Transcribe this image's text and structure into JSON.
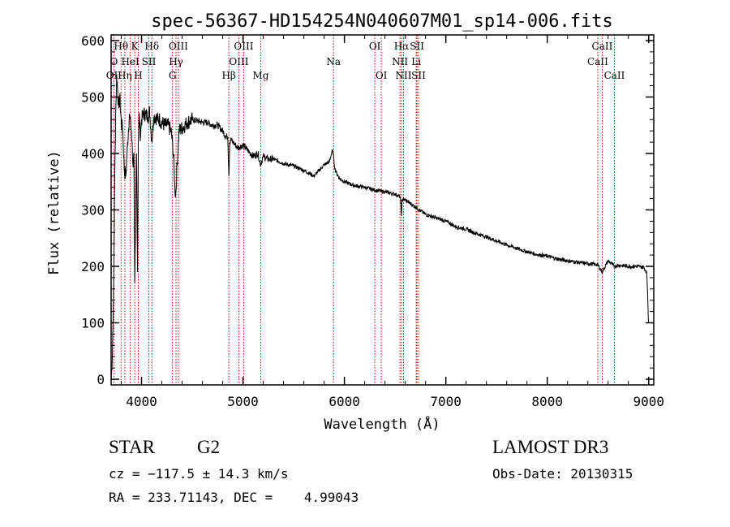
{
  "chart_data": {
    "type": "line",
    "title": "spec-56367-HD154254N040607M01_sp14-006.fits",
    "xlabel": "Wavelength (Å)",
    "ylabel": "Flux (relative)",
    "xlim": [
      3700,
      9050
    ],
    "ylim": [
      -10,
      610
    ],
    "xticks": [
      4000,
      5000,
      6000,
      7000,
      8000,
      9000
    ],
    "yticks": [
      0,
      100,
      200,
      300,
      400,
      500,
      600
    ],
    "grid": false,
    "series": [
      {
        "name": "spectrum",
        "x": [
          3700,
          3710,
          3725,
          3735,
          3745,
          3755,
          3765,
          3775,
          3785,
          3800,
          3815,
          3830,
          3845,
          3860,
          3880,
          3900,
          3915,
          3925,
          3933,
          3940,
          3950,
          3960,
          3968,
          3975,
          3990,
          4000,
          4020,
          4040,
          4060,
          4080,
          4102,
          4120,
          4140,
          4160,
          4180,
          4200,
          4230,
          4260,
          4290,
          4305,
          4320,
          4330,
          4340,
          4350,
          4370,
          4400,
          4450,
          4500,
          4550,
          4600,
          4650,
          4700,
          4750,
          4800,
          4830,
          4850,
          4861,
          4870,
          4880,
          4900,
          4950,
          5000,
          5050,
          5100,
          5150,
          5170,
          5183,
          5200,
          5250,
          5300,
          5400,
          5500,
          5600,
          5700,
          5800,
          5850,
          5880,
          5890,
          5900,
          5910,
          5950,
          6000,
          6100,
          6200,
          6300,
          6400,
          6500,
          6550,
          6560,
          6563,
          6566,
          6570,
          6600,
          6700,
          6800,
          6900,
          7000,
          7100,
          7200,
          7300,
          7400,
          7500,
          7600,
          7700,
          7800,
          7900,
          8000,
          8100,
          8200,
          8300,
          8400,
          8498,
          8542,
          8600,
          8662,
          8700,
          8800,
          8900,
          8950,
          8980,
          8990,
          8998
        ],
        "y": [
          0,
          30,
          160,
          350,
          470,
          540,
          510,
          480,
          500,
          455,
          440,
          370,
          360,
          410,
          470,
          440,
          380,
          400,
          170,
          250,
          400,
          190,
          420,
          470,
          430,
          460,
          470,
          470,
          465,
          475,
          420,
          465,
          465,
          460,
          460,
          455,
          450,
          450,
          440,
          420,
          380,
          330,
          335,
          380,
          440,
          445,
          455,
          460,
          458,
          455,
          455,
          450,
          450,
          440,
          430,
          430,
          360,
          420,
          425,
          420,
          410,
          415,
          405,
          395,
          400,
          380,
          385,
          395,
          390,
          390,
          382,
          378,
          370,
          360,
          380,
          385,
          405,
          400,
          380,
          370,
          356,
          350,
          343,
          340,
          335,
          332,
          328,
          323,
          300,
          290,
          305,
          318,
          318,
          305,
          292,
          286,
          280,
          270,
          266,
          258,
          252,
          245,
          238,
          232,
          226,
          221,
          218,
          213,
          210,
          207,
          205,
          203,
          190,
          210,
          200,
          202,
          200,
          200,
          198,
          190,
          150,
          100
        ]
      }
    ],
    "line_labels": [
      {
        "text": "Hθ",
        "x": 3798,
        "row": 1
      },
      {
        "text": "O",
        "x": 3727,
        "row": 2
      },
      {
        "text": "OII",
        "x": 3727,
        "row": 3
      },
      {
        "text": "Hη",
        "x": 3835,
        "row": 3
      },
      {
        "text": "K",
        "x": 3933,
        "row": 1
      },
      {
        "text": "HeI",
        "x": 3889,
        "row": 2
      },
      {
        "text": "H",
        "x": 3968,
        "row": 3
      },
      {
        "text": "Hδ",
        "x": 4102,
        "row": 1
      },
      {
        "text": "SII",
        "x": 4072,
        "row": 2
      },
      {
        "text": "OIII",
        "x": 4363,
        "row": 1
      },
      {
        "text": "Hγ",
        "x": 4340,
        "row": 2
      },
      {
        "text": "G",
        "x": 4305,
        "row": 3
      },
      {
        "text": "Hβ",
        "x": 4861,
        "row": 3
      },
      {
        "text": "OIII",
        "x": 5007,
        "row": 1
      },
      {
        "text": "OIII",
        "x": 4959,
        "row": 2
      },
      {
        "text": "Mg",
        "x": 5175,
        "row": 3
      },
      {
        "text": "Na",
        "x": 5893,
        "row": 2
      },
      {
        "text": "OI",
        "x": 6300,
        "row": 1
      },
      {
        "text": "OI",
        "x": 6364,
        "row": 3
      },
      {
        "text": "Hα",
        "x": 6563,
        "row": 1
      },
      {
        "text": "SII",
        "x": 6716,
        "row": 1
      },
      {
        "text": "NII",
        "x": 6548,
        "row": 2
      },
      {
        "text": "Li",
        "x": 6708,
        "row": 2
      },
      {
        "text": "NII",
        "x": 6583,
        "row": 3
      },
      {
        "text": "SII",
        "x": 6731,
        "row": 3
      },
      {
        "text": "CaII",
        "x": 8542,
        "row": 1
      },
      {
        "text": "CaII",
        "x": 8498,
        "row": 2
      },
      {
        "text": "CaII",
        "x": 8662,
        "row": 3
      }
    ],
    "line_positions": [
      3727,
      3798,
      3835,
      3889,
      3933,
      3968,
      4072,
      4102,
      4305,
      4340,
      4363,
      4861,
      4959,
      5007,
      5175,
      5893,
      6300,
      6364,
      6548,
      6563,
      6583,
      6708,
      6716,
      6731,
      8498,
      8542,
      8662
    ]
  },
  "info": {
    "object_type": "STAR",
    "spectral_class": "G2",
    "cz": "cz = −117.5 ± 14.3 km/s",
    "coords": "RA = 233.71143, DEC =    4.99043",
    "survey": "LAMOST DR3",
    "obs_date": "Obs-Date: 20130315"
  },
  "colors": {
    "spectrum": "#000000",
    "line_marker": "#cc0000",
    "axis": "#000000"
  }
}
